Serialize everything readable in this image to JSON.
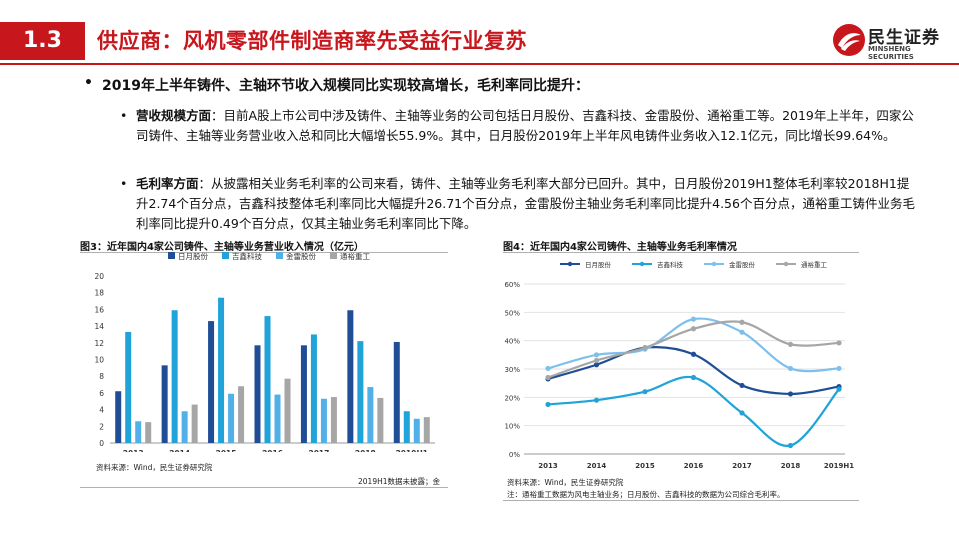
{
  "header": {
    "section_number": "1.3",
    "title": "供应商：风机零部件制造商率先受益行业复苏",
    "logo_cn": "民生证券",
    "logo_en": "MINSHENG SECURITIES"
  },
  "bullet": "2019年上半年铸件、主轴环节收入规模同比实现较高增长，毛利率同比提升：",
  "paragraphs": [
    {
      "label": "营收规模方面",
      "text": "：目前A股上市公司中涉及铸件、主轴等业务的公司包括日月股份、吉鑫科技、金雷股份、通裕重工等。2019年上半年，四家公司铸件、主轴等业务营业收入总和同比大幅增长55.9%。其中，日月股份2019年上半年风电铸件业务收入12.1亿元，同比增长99.64%。"
    },
    {
      "label": "毛利率方面",
      "text": "：从披露相关业务毛利率的公司来看，铸件、主轴等业务毛利率大部分已回升。其中，日月股份2019H1整体毛利率较2018H1提升2.74个百分点，吉鑫科技整体毛利率同比大幅提升26.71个百分点，金雷股份主轴业务毛利率同比提升4.56个百分点，通裕重工铸件业务毛利率同比提升0.49个百分点，仅其主轴业务毛利率同比下降。"
    }
  ],
  "figure3": {
    "title": "图3：近年国内4家公司铸件、主轴等业务营业收入情况（亿元）",
    "source": "资料来源：Wind，民生证券研究院",
    "note": "2019H1数据未披露；金"
  },
  "figure4": {
    "title": "图4：近年国内4家公司铸件、主轴等业务毛利率情况",
    "source": "资料来源：Wind，民生证券研究院",
    "note": "注：通裕重工数据为风电主轴业务；日月股份、吉鑫科技的数据为公司综合毛利率。"
  },
  "chart_data": [
    {
      "type": "bar",
      "categories": [
        "2013",
        "2014",
        "2015",
        "2016",
        "2017",
        "2018",
        "2019H1"
      ],
      "series": [
        {
          "name": "日月股份",
          "color": "#1f4e96",
          "values": [
            6.2,
            9.3,
            14.6,
            11.7,
            11.7,
            15.9,
            12.1
          ]
        },
        {
          "name": "吉鑫科技",
          "color": "#1fa3d9",
          "values": [
            13.3,
            15.9,
            17.4,
            15.2,
            13.0,
            12.2,
            3.8
          ]
        },
        {
          "name": "金雷股份",
          "color": "#52b0e8",
          "values": [
            2.6,
            3.8,
            5.9,
            5.8,
            5.3,
            6.7,
            2.9
          ]
        },
        {
          "name": "通裕重工",
          "color": "#a6a6a6",
          "values": [
            2.5,
            4.6,
            6.8,
            7.7,
            5.5,
            5.4,
            3.1
          ]
        }
      ],
      "yticks": [
        "0",
        "2",
        "4",
        "6",
        "8",
        "10",
        "12",
        "14",
        "16",
        "18",
        "20"
      ],
      "ylim": [
        0,
        20
      ],
      "legend": "top"
    },
    {
      "type": "line",
      "categories": [
        "2013",
        "2014",
        "2015",
        "2016",
        "2017",
        "2018",
        "2019H1"
      ],
      "series": [
        {
          "name": "日月股份",
          "color": "#1f4e96",
          "values": [
            0.265,
            0.315,
            0.375,
            0.352,
            0.242,
            0.212,
            0.238
          ]
        },
        {
          "name": "吉鑫科技",
          "color": "#1fa3d9",
          "values": [
            0.175,
            0.19,
            0.22,
            0.27,
            0.145,
            0.03,
            0.229
          ]
        },
        {
          "name": "金雷股份",
          "color": "#7cc0ee",
          "values": [
            0.302,
            0.35,
            0.37,
            0.476,
            0.43,
            0.302,
            0.302
          ]
        },
        {
          "name": "通裕重工",
          "color": "#a6a6a6",
          "values": [
            0.27,
            0.33,
            0.375,
            0.442,
            0.465,
            0.387,
            0.392
          ]
        }
      ],
      "yticks": [
        "0%",
        "10%",
        "20%",
        "30%",
        "40%",
        "50%",
        "60%"
      ],
      "ylim": [
        0,
        0.6
      ],
      "legend": "top"
    }
  ]
}
